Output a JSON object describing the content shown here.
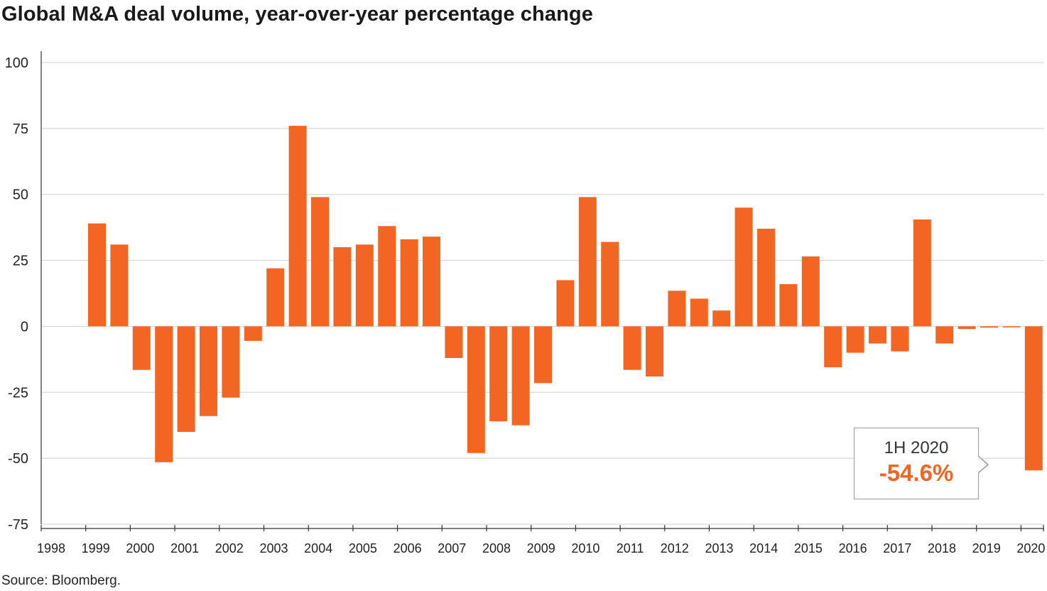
{
  "title": "Global M&A deal volume, year-over-year percentage change",
  "source": "Source: Bloomberg.",
  "colors": {
    "bar": "#f26522",
    "grid": "#cfcfcf",
    "axis": "#333333"
  },
  "callout": {
    "label": "1H 2020",
    "value": "-54.6%"
  },
  "chart_data": {
    "type": "bar",
    "title": "Global M&A deal volume, year-over-year percentage change",
    "xlabel": "",
    "ylabel": "",
    "ylim": [
      -75,
      100
    ],
    "yticks": [
      100,
      75,
      50,
      25,
      0,
      -25,
      -50,
      -75
    ],
    "year_labels": [
      "1998",
      "1999",
      "2000",
      "2001",
      "2002",
      "2003",
      "2004",
      "2005",
      "2006",
      "2007",
      "2008",
      "2009",
      "2010",
      "2011",
      "2012",
      "2013",
      "2014",
      "2015",
      "2016",
      "2017",
      "2018",
      "2019",
      "2020"
    ],
    "grid": true,
    "legend": "none",
    "periods": [
      "1999 1H",
      "1999 2H",
      "2000 1H",
      "2000 2H",
      "2001 1H",
      "2001 2H",
      "2002 1H",
      "2002 2H",
      "2003 1H",
      "2003 2H",
      "2004 1H",
      "2004 2H",
      "2005 1H",
      "2005 2H",
      "2006 1H",
      "2006 2H",
      "2007 1H",
      "2007 2H",
      "2008 1H",
      "2008 2H",
      "2009 1H",
      "2009 2H",
      "2010 1H",
      "2010 2H",
      "2011 1H",
      "2011 2H",
      "2012 1H",
      "2012 2H",
      "2013 1H",
      "2013 2H",
      "2014 1H",
      "2014 2H",
      "2015 1H",
      "2015 2H",
      "2016 1H",
      "2016 2H",
      "2017 1H",
      "2017 2H",
      "2018 1H",
      "2018 2H",
      "2019 1H",
      "2019 2H",
      "2020 1H"
    ],
    "values": [
      39,
      31,
      -16.5,
      -51.5,
      -40,
      -34,
      -27,
      -5.5,
      22,
      76,
      49,
      30,
      31,
      38,
      33,
      34,
      -12,
      -48,
      -36,
      -37.5,
      -21.5,
      17.5,
      49,
      32,
      -16.5,
      -19,
      13.5,
      10.5,
      6,
      45,
      37,
      16,
      26.5,
      -15.5,
      -10,
      -6.5,
      -9.5,
      40.5,
      -6.5,
      -1,
      -0.5,
      0,
      -54.6
    ]
  }
}
